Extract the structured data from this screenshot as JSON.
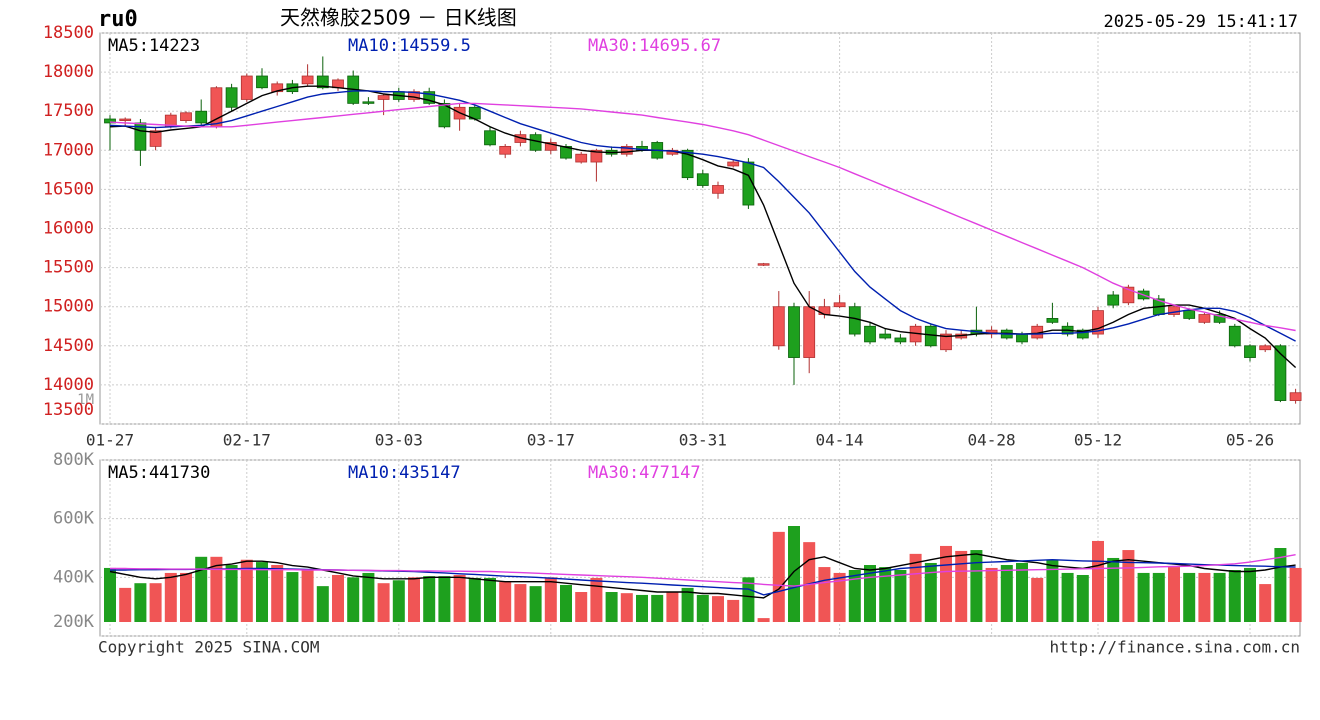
{
  "chart_data": [
    {
      "type": "candlestick",
      "symbol": "ru0",
      "title": "天然橡胶2509 － 日K线图",
      "timestamp": "2025-05-29 15:41:17",
      "note": "1M",
      "categories": [
        "01-27",
        null,
        null,
        null,
        null,
        null,
        null,
        null,
        null,
        "02-17",
        null,
        null,
        null,
        null,
        null,
        null,
        null,
        null,
        null,
        "03-03",
        null,
        null,
        null,
        null,
        null,
        null,
        null,
        null,
        null,
        "03-17",
        null,
        null,
        null,
        null,
        null,
        null,
        null,
        null,
        null,
        "03-31",
        null,
        null,
        null,
        null,
        null,
        null,
        null,
        null,
        "04-14",
        null,
        null,
        null,
        null,
        null,
        null,
        null,
        null,
        null,
        "04-28",
        null,
        null,
        null,
        null,
        null,
        null,
        "05-12",
        null,
        null,
        null,
        null,
        null,
        null,
        null,
        null,
        null,
        "05-26",
        null,
        null,
        null
      ],
      "open": [
        17400,
        17380,
        17350,
        17050,
        17300,
        17380,
        17500,
        17300,
        17800,
        17650,
        17950,
        17750,
        17850,
        17850,
        17950,
        17800,
        17950,
        17620,
        17650,
        17750,
        17650,
        17750,
        17600,
        17400,
        17550,
        17250,
        16950,
        17100,
        17200,
        17000,
        17050,
        16850,
        16850,
        17000,
        16950,
        17050,
        17100,
        16950,
        17000,
        16700,
        16450,
        16800,
        16850,
        15530,
        14500,
        15000,
        14350,
        14900,
        15000,
        15000,
        14750,
        14650,
        14600,
        14550,
        14750,
        14450,
        14600,
        14700,
        14650,
        14700,
        14650,
        14600,
        14850,
        14750,
        14700,
        14650,
        15150,
        15050,
        15200,
        15100,
        14900,
        14950,
        14800,
        14900,
        14750,
        14500,
        14450,
        14500,
        13800
      ],
      "high": [
        17450,
        17420,
        17400,
        17300,
        17480,
        17500,
        17650,
        17820,
        17850,
        17980,
        18050,
        17880,
        17900,
        18100,
        18200,
        17920,
        18020,
        17680,
        17720,
        17800,
        17780,
        17800,
        17650,
        17600,
        17580,
        17300,
        17080,
        17250,
        17230,
        17150,
        17080,
        16980,
        17020,
        17050,
        17080,
        17120,
        17120,
        17030,
        17020,
        16750,
        16600,
        16880,
        16900,
        15560,
        15200,
        15050,
        15200,
        15100,
        15150,
        15050,
        14800,
        14720,
        14650,
        14780,
        14780,
        14700,
        14700,
        15000,
        14750,
        14720,
        14680,
        14780,
        15050,
        14800,
        14720,
        15000,
        15200,
        15280,
        15230,
        15150,
        15020,
        14980,
        14920,
        14950,
        14780,
        14520,
        14520,
        14520,
        13950
      ],
      "low": [
        17000,
        17300,
        16800,
        17000,
        17280,
        17350,
        17320,
        17280,
        17500,
        17620,
        17780,
        17700,
        17720,
        17820,
        17780,
        17760,
        17580,
        17580,
        17450,
        17620,
        17620,
        17580,
        17280,
        17250,
        17380,
        17050,
        16900,
        17050,
        16980,
        16950,
        16880,
        16830,
        16600,
        16920,
        16920,
        16980,
        16880,
        16930,
        16620,
        16520,
        16380,
        16780,
        16250,
        15520,
        14450,
        14000,
        14150,
        14850,
        14980,
        14620,
        14520,
        14580,
        14520,
        14500,
        14480,
        14420,
        14580,
        14620,
        14600,
        14580,
        14520,
        14580,
        14780,
        14620,
        14580,
        14600,
        14980,
        15020,
        15080,
        14880,
        14870,
        14830,
        14780,
        14780,
        14480,
        14300,
        14420,
        13780,
        13760
      ],
      "close": [
        17350,
        17400,
        17000,
        17250,
        17450,
        17480,
        17350,
        17800,
        17550,
        17950,
        17800,
        17850,
        17750,
        17950,
        17800,
        17900,
        17600,
        17600,
        17700,
        17650,
        17750,
        17600,
        17300,
        17550,
        17400,
        17070,
        17050,
        17200,
        17000,
        17100,
        16900,
        16950,
        17000,
        16950,
        17050,
        17000,
        16900,
        17000,
        16650,
        16550,
        16550,
        16850,
        16300,
        15550,
        15000,
        14350,
        15000,
        15000,
        15050,
        14650,
        14550,
        14600,
        14550,
        14750,
        14500,
        14650,
        14650,
        14650,
        14700,
        14600,
        14550,
        14750,
        14800,
        14650,
        14600,
        14950,
        15020,
        15250,
        15100,
        14900,
        15000,
        14850,
        14900,
        14800,
        14500,
        14350,
        14500,
        13800,
        13900
      ],
      "up_color": "#f05555",
      "down_color": "#1ea01e",
      "series": [
        {
          "name": "MA5:14223",
          "color": "#000000",
          "values": [
            17300,
            17310,
            17250,
            17230,
            17260,
            17280,
            17300,
            17400,
            17500,
            17600,
            17700,
            17760,
            17800,
            17820,
            17820,
            17800,
            17780,
            17760,
            17720,
            17700,
            17680,
            17640,
            17580,
            17480,
            17400,
            17300,
            17220,
            17160,
            17120,
            17080,
            17040,
            17000,
            16980,
            16970,
            16980,
            17000,
            17000,
            16990,
            16950,
            16880,
            16800,
            16760,
            16680,
            16300,
            15800,
            15300,
            15000,
            14900,
            14880,
            14850,
            14800,
            14720,
            14680,
            14660,
            14640,
            14620,
            14630,
            14650,
            14660,
            14660,
            14650,
            14660,
            14700,
            14700,
            14680,
            14720,
            14800,
            14900,
            14980,
            15000,
            15020,
            15020,
            14980,
            14920,
            14850,
            14720,
            14600,
            14400,
            14223
          ]
        },
        {
          "name": "MA10:14559.5",
          "color": "#0020b0",
          "values": [
            17320,
            17310,
            17300,
            17290,
            17300,
            17310,
            17320,
            17340,
            17380,
            17440,
            17500,
            17560,
            17620,
            17680,
            17720,
            17740,
            17760,
            17760,
            17750,
            17750,
            17740,
            17720,
            17680,
            17640,
            17580,
            17500,
            17420,
            17340,
            17280,
            17220,
            17160,
            17100,
            17060,
            17040,
            17030,
            17010,
            17000,
            16990,
            16970,
            16950,
            16920,
            16880,
            16840,
            16780,
            16600,
            16400,
            16200,
            15950,
            15700,
            15450,
            15250,
            15100,
            14950,
            14850,
            14780,
            14720,
            14700,
            14680,
            14660,
            14650,
            14650,
            14650,
            14660,
            14660,
            14670,
            14690,
            14730,
            14780,
            14840,
            14900,
            14930,
            14960,
            14980,
            14980,
            14940,
            14860,
            14760,
            14660,
            14559.5
          ]
        },
        {
          "name": "MA30:14695.67",
          "color": "#e040e0",
          "values": [
            17360,
            17350,
            17340,
            17330,
            17320,
            17310,
            17300,
            17300,
            17300,
            17320,
            17340,
            17360,
            17380,
            17400,
            17420,
            17440,
            17460,
            17480,
            17500,
            17520,
            17540,
            17560,
            17580,
            17600,
            17600,
            17590,
            17580,
            17570,
            17560,
            17550,
            17540,
            17530,
            17510,
            17490,
            17470,
            17450,
            17420,
            17390,
            17360,
            17330,
            17290,
            17250,
            17200,
            17130,
            17060,
            16990,
            16920,
            16850,
            16780,
            16700,
            16620,
            16540,
            16460,
            16380,
            16300,
            16220,
            16140,
            16060,
            15980,
            15900,
            15820,
            15740,
            15660,
            15580,
            15500,
            15400,
            15300,
            15220,
            15150,
            15080,
            15020,
            14970,
            14930,
            14880,
            14840,
            14800,
            14760,
            14730,
            14695.67
          ]
        }
      ],
      "ylim": [
        13500,
        18500
      ],
      "yticks": [
        13500,
        14000,
        14500,
        15000,
        15500,
        16000,
        16500,
        17000,
        17500,
        18000,
        18500
      ],
      "grid": true
    },
    {
      "type": "bar",
      "footer_left": "Copyright 2025 SINA.COM",
      "footer_right": "http://finance.sina.com.cn",
      "values": [
        432,
        364,
        380,
        380,
        415,
        415,
        470,
        470,
        442,
        460,
        452,
        442,
        418,
        425,
        370,
        408,
        400,
        415,
        380,
        390,
        400,
        404,
        404,
        408,
        398,
        398,
        384,
        377,
        370,
        400,
        374,
        350,
        398,
        350,
        346,
        340,
        340,
        350,
        364,
        340,
        336,
        323,
        400,
        261,
        555,
        575,
        520,
        435,
        415,
        425,
        442,
        435,
        425,
        480,
        449,
        507,
        490,
        493,
        432,
        442,
        449,
        398,
        460,
        415,
        408,
        524,
        466,
        493,
        415,
        415,
        435,
        415,
        415,
        415,
        425,
        432,
        377,
        500,
        432
      ],
      "series": [
        {
          "name": "MA5:441730",
          "color": "#000000",
          "values": [
            420,
            410,
            400,
            395,
            400,
            410,
            425,
            440,
            445,
            455,
            455,
            450,
            440,
            435,
            425,
            415,
            405,
            400,
            395,
            395,
            395,
            400,
            400,
            400,
            395,
            390,
            385,
            385,
            385,
            385,
            380,
            375,
            370,
            365,
            360,
            355,
            350,
            350,
            350,
            345,
            345,
            340,
            335,
            330,
            360,
            420,
            460,
            470,
            450,
            430,
            425,
            430,
            440,
            450,
            460,
            470,
            475,
            480,
            470,
            460,
            455,
            450,
            440,
            435,
            430,
            440,
            455,
            460,
            455,
            450,
            445,
            440,
            430,
            425,
            420,
            420,
            425,
            435,
            441.73
          ]
        },
        {
          "name": "MA10:435147",
          "color": "#0020b0",
          "values": [
            425,
            425,
            426,
            426,
            427,
            427,
            428,
            428,
            429,
            430,
            430,
            429,
            428,
            427,
            426,
            425,
            424,
            423,
            422,
            421,
            420,
            417,
            415,
            412,
            410,
            407,
            404,
            402,
            400,
            397,
            394,
            391,
            388,
            385,
            382,
            380,
            377,
            374,
            371,
            368,
            365,
            362,
            360,
            340,
            352,
            365,
            378,
            390,
            398,
            406,
            414,
            422,
            430,
            434,
            438,
            442,
            446,
            450,
            452,
            454,
            456,
            458,
            460,
            458,
            456,
            455,
            453,
            451,
            450,
            449,
            447,
            445,
            443,
            442,
            440,
            439,
            438,
            436,
            435.147
          ]
        },
        {
          "name": "MA30:477147",
          "color": "#e040e0",
          "values": [
            430,
            430,
            429,
            429,
            428,
            428,
            428,
            427,
            427,
            427,
            426,
            426,
            426,
            425,
            425,
            425,
            424,
            424,
            423,
            423,
            422,
            422,
            421,
            421,
            420,
            420,
            418,
            416,
            414,
            412,
            410,
            408,
            406,
            404,
            402,
            400,
            397,
            394,
            391,
            388,
            385,
            382,
            380,
            376,
            373,
            370,
            376,
            382,
            388,
            394,
            400,
            404,
            408,
            412,
            416,
            420,
            421,
            422,
            423,
            424,
            425,
            426,
            427,
            428,
            429,
            430,
            431,
            432,
            434,
            436,
            437,
            438,
            440,
            443,
            446,
            452,
            460,
            468,
            477.147
          ]
        }
      ],
      "ylim": [
        200,
        800
      ],
      "yticks": [
        {
          "value": 200,
          "label": "200K"
        },
        {
          "value": 400,
          "label": "400K"
        },
        {
          "value": 600,
          "label": "600K"
        },
        {
          "value": 800,
          "label": "800K"
        }
      ],
      "grid": true
    }
  ]
}
